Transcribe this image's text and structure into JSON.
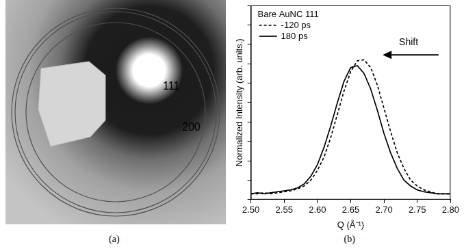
{
  "panel_a": {
    "caption": "(a)",
    "ring_labels": [
      "111",
      "200"
    ]
  },
  "chart_data": {
    "caption": "(b)",
    "type": "line",
    "x_label": "Q (Å⁻¹)",
    "y_label": "Normalized Intensity (arb. units.)",
    "legend_title": "Bare AuNC 111",
    "annotation": "Shift",
    "x": [
      2.5,
      2.51,
      2.52,
      2.53,
      2.54,
      2.55,
      2.56,
      2.57,
      2.58,
      2.59,
      2.6,
      2.61,
      2.62,
      2.63,
      2.64,
      2.65,
      2.66,
      2.67,
      2.68,
      2.69,
      2.7,
      2.71,
      2.72,
      2.73,
      2.74,
      2.75,
      2.76,
      2.77,
      2.78,
      2.79,
      2.8
    ],
    "series": [
      {
        "name": "-120 ps",
        "color": "#000000",
        "line_style": "dashed",
        "values": [
          0.03,
          0.03,
          0.035,
          0.03,
          0.035,
          0.04,
          0.045,
          0.055,
          0.07,
          0.1,
          0.15,
          0.22,
          0.32,
          0.44,
          0.56,
          0.66,
          0.715,
          0.72,
          0.68,
          0.59,
          0.47,
          0.35,
          0.24,
          0.16,
          0.1,
          0.07,
          0.05,
          0.04,
          0.03,
          0.03,
          0.03
        ]
      },
      {
        "name": "180 ps",
        "color": "#000000",
        "line_style": "solid",
        "values": [
          0.03,
          0.035,
          0.03,
          0.035,
          0.04,
          0.045,
          0.05,
          0.06,
          0.08,
          0.12,
          0.18,
          0.27,
          0.38,
          0.5,
          0.61,
          0.68,
          0.69,
          0.65,
          0.57,
          0.46,
          0.34,
          0.24,
          0.16,
          0.1,
          0.07,
          0.05,
          0.04,
          0.035,
          0.03,
          0.03,
          0.03
        ]
      }
    ],
    "xlim": [
      2.5,
      2.8
    ],
    "xticks": [
      {
        "value": 2.5,
        "label": "2.50"
      },
      {
        "value": 2.55,
        "label": "2.55"
      },
      {
        "value": 2.6,
        "label": "2.60"
      },
      {
        "value": 2.65,
        "label": "2.65"
      },
      {
        "value": 2.7,
        "label": "2.70"
      },
      {
        "value": 2.75,
        "label": "2.75"
      },
      {
        "value": 2.8,
        "label": "2.80"
      }
    ],
    "ylim": [
      0,
      1
    ],
    "yticks": [
      0,
      0.1,
      0.2,
      0.3,
      0.4,
      0.5,
      0.6,
      0.7,
      0.8,
      0.9,
      1
    ],
    "tick_labels": "x",
    "grid": false,
    "legend": "top-left"
  }
}
